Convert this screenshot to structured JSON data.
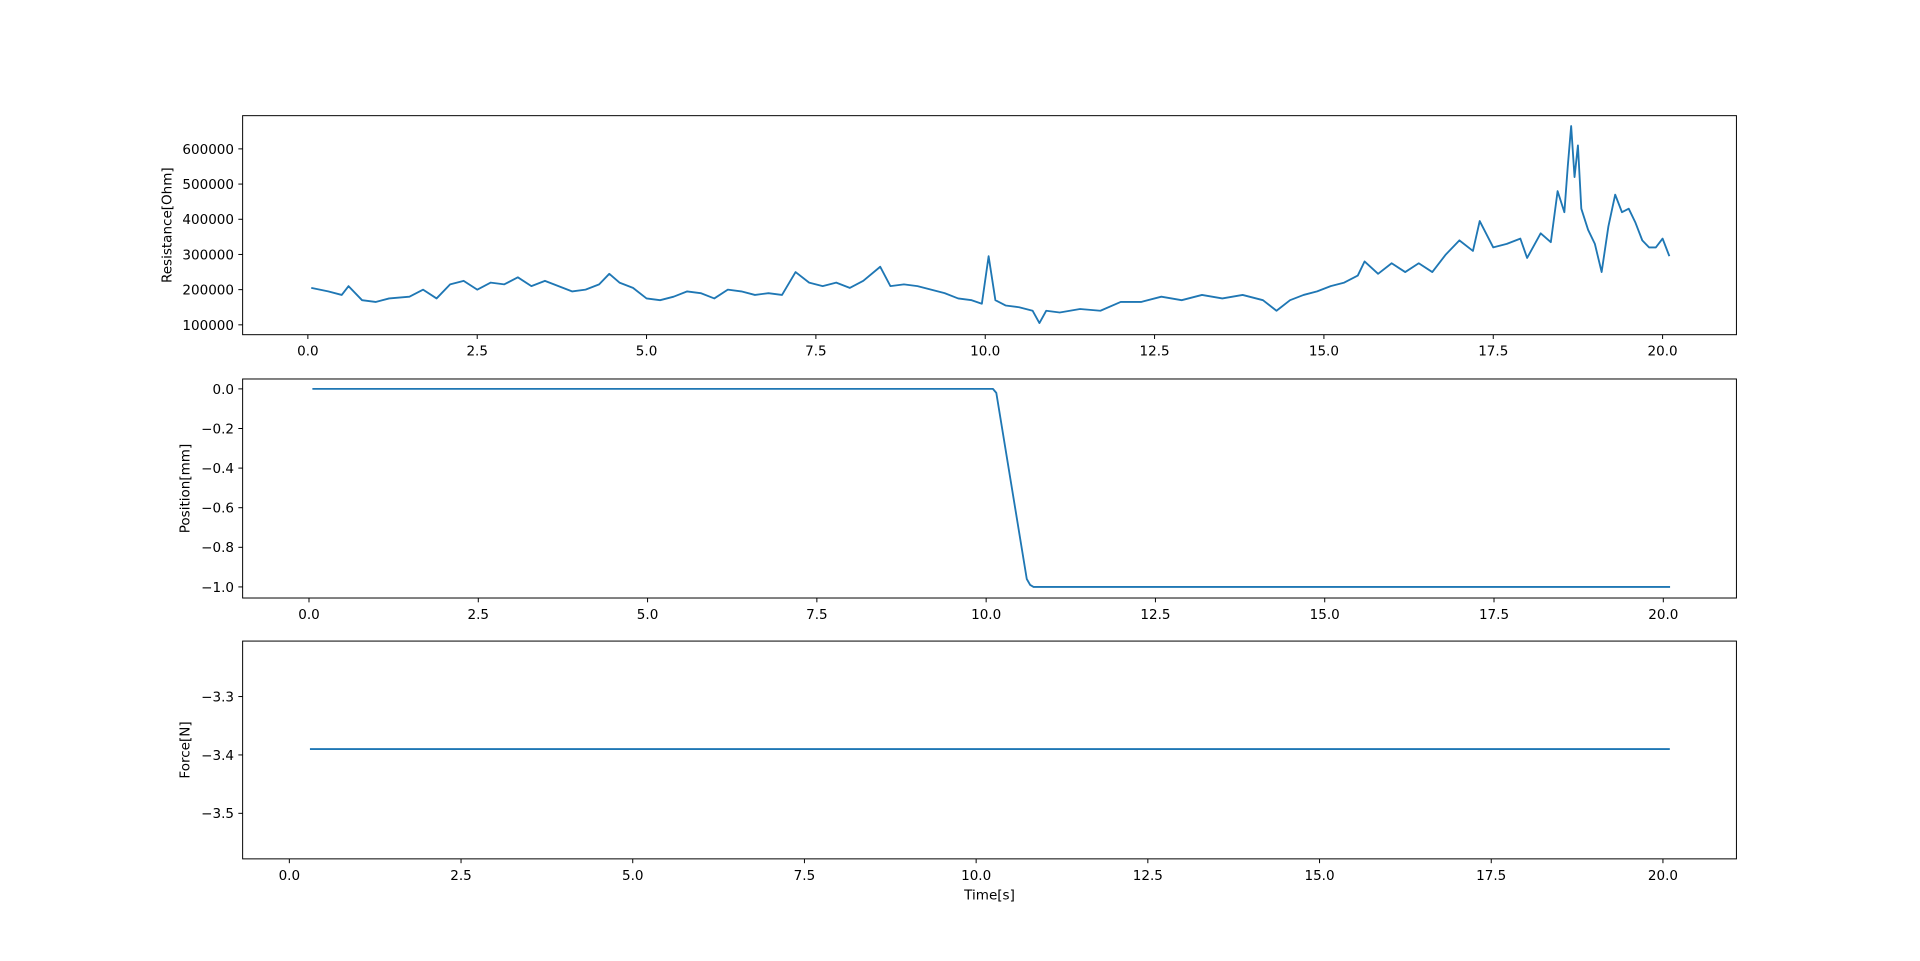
{
  "chart_data": [
    {
      "type": "line",
      "ylabel": "Resistance[Ohm]",
      "color": "#1f77b4",
      "x": [
        0.05,
        0.3,
        0.5,
        0.6,
        0.8,
        1.0,
        1.2,
        1.5,
        1.7,
        1.9,
        2.1,
        2.3,
        2.5,
        2.7,
        2.9,
        3.1,
        3.3,
        3.5,
        3.7,
        3.9,
        4.1,
        4.3,
        4.45,
        4.6,
        4.8,
        5.0,
        5.2,
        5.4,
        5.6,
        5.8,
        6.0,
        6.2,
        6.4,
        6.6,
        6.8,
        7.0,
        7.2,
        7.4,
        7.6,
        7.8,
        8.0,
        8.2,
        8.45,
        8.6,
        8.8,
        9.0,
        9.2,
        9.4,
        9.6,
        9.8,
        9.95,
        10.05,
        10.15,
        10.3,
        10.5,
        10.7,
        10.8,
        10.9,
        11.1,
        11.4,
        11.7,
        12.0,
        12.3,
        12.6,
        12.9,
        13.2,
        13.5,
        13.8,
        14.1,
        14.3,
        14.5,
        14.7,
        14.9,
        15.1,
        15.3,
        15.5,
        15.6,
        15.8,
        16.0,
        16.2,
        16.4,
        16.6,
        16.8,
        17.0,
        17.2,
        17.3,
        17.5,
        17.7,
        17.9,
        18.0,
        18.2,
        18.35,
        18.45,
        18.55,
        18.6,
        18.65,
        18.7,
        18.75,
        18.8,
        18.9,
        19.0,
        19.1,
        19.2,
        19.3,
        19.4,
        19.5,
        19.6,
        19.7,
        19.8,
        19.9,
        20.0,
        20.1
      ],
      "values": [
        205000,
        195000,
        185000,
        210000,
        170000,
        165000,
        175000,
        180000,
        200000,
        175000,
        215000,
        225000,
        200000,
        220000,
        215000,
        235000,
        210000,
        225000,
        210000,
        195000,
        200000,
        215000,
        245000,
        220000,
        205000,
        175000,
        170000,
        180000,
        195000,
        190000,
        175000,
        200000,
        195000,
        185000,
        190000,
        185000,
        250000,
        220000,
        210000,
        220000,
        205000,
        225000,
        265000,
        210000,
        215000,
        210000,
        200000,
        190000,
        175000,
        170000,
        160000,
        295000,
        170000,
        155000,
        150000,
        140000,
        105000,
        140000,
        135000,
        145000,
        140000,
        165000,
        165000,
        180000,
        170000,
        185000,
        175000,
        185000,
        170000,
        140000,
        170000,
        185000,
        195000,
        210000,
        220000,
        240000,
        280000,
        245000,
        275000,
        250000,
        275000,
        250000,
        300000,
        340000,
        310000,
        395000,
        320000,
        330000,
        345000,
        290000,
        360000,
        335000,
        480000,
        420000,
        550000,
        665000,
        520000,
        610000,
        430000,
        370000,
        330000,
        250000,
        380000,
        470000,
        420000,
        430000,
        390000,
        340000,
        320000,
        320000,
        345000,
        295000
      ],
      "xlim": [
        -0.963,
        21.09
      ],
      "ylim": [
        72000,
        694400
      ],
      "xticks": [
        {
          "value": 0,
          "label": "0.0"
        },
        2.5,
        {
          "value": 5,
          "label": "5.0"
        },
        7.5,
        {
          "value": 10,
          "label": "10.0"
        },
        12.5,
        {
          "value": 15,
          "label": "15.0"
        },
        17.5,
        {
          "value": 20,
          "label": "20.0"
        }
      ],
      "yticks": [
        100000,
        200000,
        300000,
        400000,
        500000,
        600000
      ]
    },
    {
      "type": "line",
      "ylabel": "Position[mm]",
      "color": "#1f77b4",
      "x": [
        0.05,
        10.05,
        10.1,
        10.15,
        10.6,
        10.65,
        10.7,
        20.1
      ],
      "values": [
        0,
        0,
        0,
        -0.02,
        -0.96,
        -0.99,
        -1.0,
        -1.0
      ],
      "xlim": [
        -0.98,
        21.08
      ],
      "ylim": [
        -1.056,
        0.05
      ],
      "xticks": [
        {
          "value": 0,
          "label": "0.0"
        },
        2.5,
        {
          "value": 5,
          "label": "5.0"
        },
        7.5,
        {
          "value": 10,
          "label": "10.0"
        },
        12.5,
        {
          "value": 15,
          "label": "15.0"
        },
        17.5,
        {
          "value": 20,
          "label": "20.0"
        }
      ],
      "yticks": [
        {
          "value": 0,
          "label": "0.0"
        },
        {
          "value": -0.2,
          "label": "−0.2"
        },
        {
          "value": -0.4,
          "label": "−0.4"
        },
        {
          "value": -0.6,
          "label": "−0.6"
        },
        {
          "value": -0.8,
          "label": "−0.8"
        },
        {
          "value": -1.0,
          "label": "−1.0"
        }
      ]
    },
    {
      "type": "line",
      "ylabel": "Force[N]",
      "xlabel": "Time[s]",
      "color": "#1f77b4",
      "x": [
        0.3,
        20.1
      ],
      "values": [
        -3.39,
        -3.39
      ],
      "xlim": [
        -0.68,
        21.07
      ],
      "ylim": [
        -3.578,
        -3.205
      ],
      "xticks": [
        {
          "value": 0,
          "label": "0.0"
        },
        2.5,
        {
          "value": 5,
          "label": "5.0"
        },
        7.5,
        {
          "value": 10,
          "label": "10.0"
        },
        12.5,
        {
          "value": 15,
          "label": "15.0"
        },
        17.5,
        {
          "value": 20,
          "label": "20.0"
        }
      ],
      "yticks": [
        {
          "value": -3.3,
          "label": "−3.3"
        },
        {
          "value": -3.4,
          "label": "−3.4"
        },
        {
          "value": -3.5,
          "label": "−3.5"
        }
      ]
    }
  ]
}
